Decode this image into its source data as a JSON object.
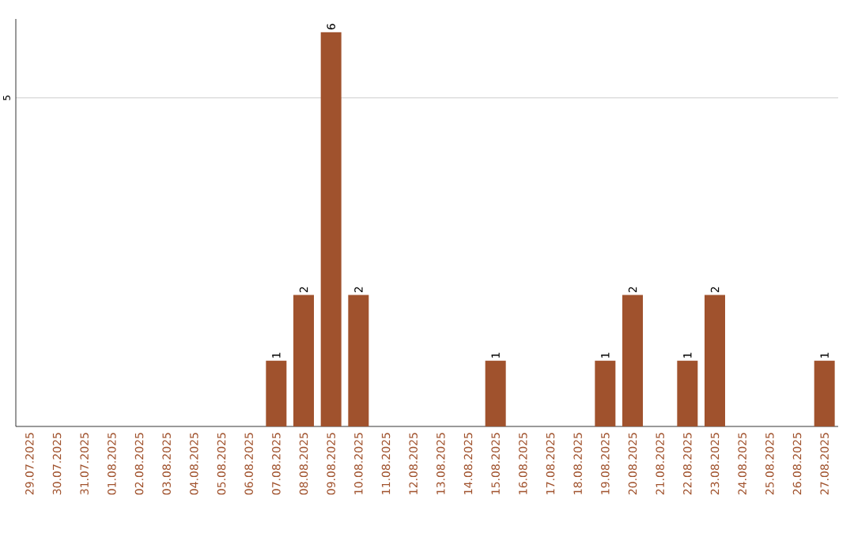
{
  "chart_data": {
    "type": "bar",
    "categories": [
      "29.07.2025",
      "30.07.2025",
      "31.07.2025",
      "01.08.2025",
      "02.08.2025",
      "03.08.2025",
      "04.08.2025",
      "05.08.2025",
      "06.08.2025",
      "07.08.2025",
      "08.08.2025",
      "09.08.2025",
      "10.08.2025",
      "11.08.2025",
      "12.08.2025",
      "13.08.2025",
      "14.08.2025",
      "15.08.2025",
      "16.08.2025",
      "17.08.2025",
      "18.08.2025",
      "19.08.2025",
      "20.08.2025",
      "21.08.2025",
      "22.08.2025",
      "23.08.2025",
      "24.08.2025",
      "25.08.2025",
      "26.08.2025",
      "27.08.2025"
    ],
    "values": [
      0,
      0,
      0,
      0,
      0,
      0,
      0,
      0,
      0,
      1,
      2,
      6,
      2,
      0,
      0,
      0,
      0,
      1,
      0,
      0,
      0,
      1,
      2,
      0,
      1,
      2,
      0,
      0,
      0,
      1
    ],
    "value_labels": [
      null,
      null,
      null,
      null,
      null,
      null,
      null,
      null,
      null,
      "1",
      "2",
      "6",
      "2",
      null,
      null,
      null,
      null,
      "1",
      null,
      null,
      null,
      "1",
      "2",
      null,
      "1",
      "2",
      null,
      null,
      null,
      "1"
    ],
    "color": "#a0522d",
    "ylim": [
      0,
      6.2
    ],
    "yticks": [
      5
    ],
    "grid": "y"
  }
}
